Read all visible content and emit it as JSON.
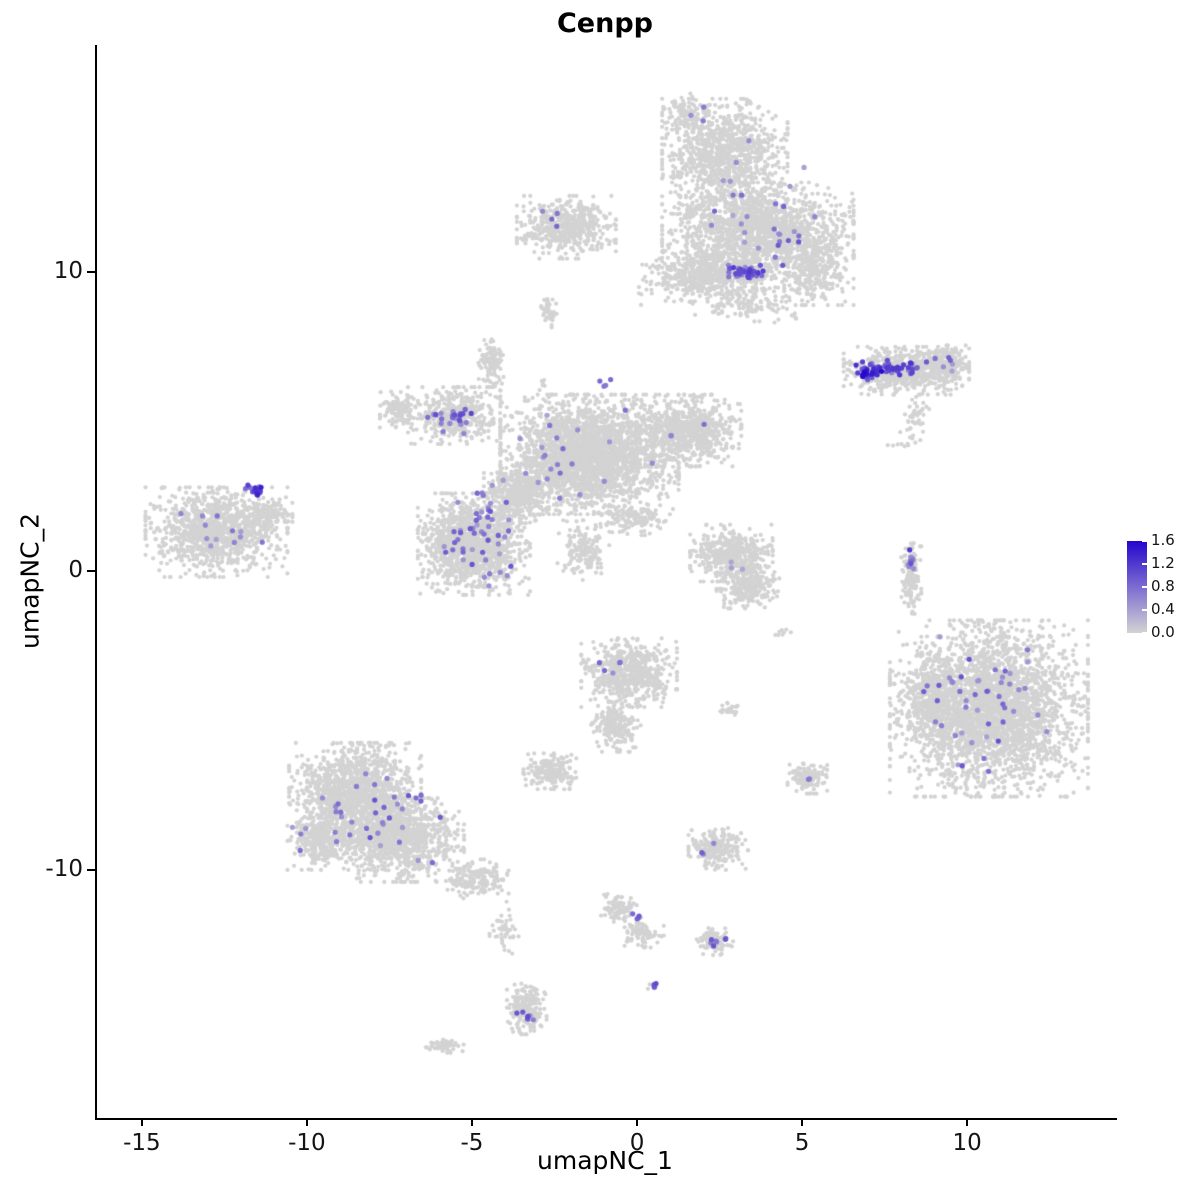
{
  "chart_data": {
    "type": "scatter",
    "title": "Cenpp",
    "xlabel": "umapNC_1",
    "ylabel": "umapNC_2",
    "xlim": [
      -16.42,
      14.48
    ],
    "ylim": [
      -18.3,
      17.6
    ],
    "xticks": [
      -15,
      -10,
      -5,
      0,
      5,
      10
    ],
    "yticks": [
      -10,
      0,
      10
    ],
    "grid": false,
    "background": "#FFFFFF",
    "point_color_low": "#D3D3D3",
    "point_color_high": "#2406CD",
    "legend": {
      "position": "right",
      "min": 0.0,
      "max": 1.6,
      "ticks": [
        1.6,
        1.2,
        0.8,
        0.4,
        0.0
      ]
    },
    "clusters_format": "[center_x, center_y, radius_x, radius_y, n_points] — gray (zero-expression) cell blobs read from the UMAP",
    "clusters": [
      [
        2.6,
        13.9,
        1.9,
        1.9,
        1000
      ],
      [
        1.5,
        15.3,
        0.8,
        0.7,
        120
      ],
      [
        3.6,
        11.4,
        2.9,
        1.6,
        1500
      ],
      [
        2.2,
        9.9,
        2.2,
        1.0,
        650
      ],
      [
        5.3,
        10.2,
        1.2,
        1.3,
        350
      ],
      [
        3.3,
        8.9,
        1.6,
        0.6,
        110
      ],
      [
        -2.2,
        11.5,
        1.5,
        1.05,
        520
      ],
      [
        -2.75,
        8.7,
        0.3,
        0.55,
        40
      ],
      [
        8.1,
        6.7,
        1.9,
        0.8,
        620
      ],
      [
        9.3,
        6.95,
        0.7,
        0.6,
        170
      ],
      [
        8.35,
        5.1,
        0.5,
        0.8,
        45
      ],
      [
        8.0,
        4.2,
        0.5,
        0.35,
        10
      ],
      [
        4.7,
        8.5,
        0.2,
        0.2,
        5
      ],
      [
        -1.5,
        3.9,
        2.7,
        2.0,
        2600
      ],
      [
        1.5,
        4.7,
        1.6,
        1.2,
        700
      ],
      [
        -5.6,
        5.2,
        1.4,
        0.95,
        450
      ],
      [
        -7.3,
        5.4,
        0.55,
        0.6,
        110
      ],
      [
        -4.5,
        7.0,
        0.4,
        0.85,
        110
      ],
      [
        -2.9,
        6.3,
        0.2,
        0.3,
        6
      ],
      [
        -5.0,
        0.9,
        1.7,
        1.7,
        1300
      ],
      [
        -3.7,
        2.6,
        1.0,
        1.0,
        400
      ],
      [
        -1.7,
        0.7,
        0.8,
        1.0,
        150
      ],
      [
        -0.2,
        1.7,
        1.1,
        0.5,
        130
      ],
      [
        -12.8,
        1.3,
        2.15,
        1.5,
        1050
      ],
      [
        -11.3,
        1.9,
        0.8,
        0.5,
        130
      ],
      [
        2.8,
        0.6,
        1.25,
        0.95,
        420
      ],
      [
        3.3,
        -0.5,
        0.95,
        0.75,
        280
      ],
      [
        8.25,
        -0.2,
        0.3,
        1.3,
        140
      ],
      [
        10.6,
        -4.6,
        3.0,
        2.95,
        3000
      ],
      [
        8.9,
        -4.1,
        0.75,
        1.3,
        230
      ],
      [
        -0.3,
        -3.4,
        1.45,
        1.15,
        600
      ],
      [
        -0.7,
        -5.2,
        0.75,
        0.85,
        210
      ],
      [
        -2.7,
        -6.7,
        0.8,
        0.6,
        210
      ],
      [
        -8.6,
        -7.4,
        2.0,
        1.65,
        1300
      ],
      [
        -7.3,
        -9.0,
        2.0,
        1.4,
        1050
      ],
      [
        -9.7,
        -9.0,
        0.95,
        1.0,
        330
      ],
      [
        -4.9,
        -10.3,
        0.95,
        0.65,
        170
      ],
      [
        -4.1,
        -11.9,
        0.45,
        0.9,
        45
      ],
      [
        5.1,
        -6.9,
        0.6,
        0.55,
        125
      ],
      [
        2.4,
        -9.3,
        0.9,
        0.7,
        210
      ],
      [
        2.7,
        -4.6,
        0.45,
        0.3,
        22
      ],
      [
        4.3,
        -2.0,
        0.3,
        0.25,
        8
      ],
      [
        -0.6,
        -11.3,
        0.55,
        0.5,
        85
      ],
      [
        0.1,
        -12.1,
        0.65,
        0.5,
        85
      ],
      [
        2.3,
        -12.4,
        0.55,
        0.45,
        95
      ],
      [
        -3.4,
        -14.6,
        0.6,
        0.9,
        210
      ],
      [
        0.45,
        -13.9,
        0.18,
        0.18,
        6
      ],
      [
        -5.9,
        -15.9,
        0.65,
        0.22,
        55
      ]
    ],
    "expression_points_format": "[center_x, center_y, radius_x, radius_y, n_points, value_min, value_max] — Cenpp-expressing cells (purple/blue)",
    "expression_points": [
      [
        3.2,
        9.95,
        0.6,
        0.28,
        40,
        0.5,
        1.2
      ],
      [
        4.3,
        11.2,
        1.1,
        1.0,
        16,
        0.4,
        1.0
      ],
      [
        3.0,
        12.8,
        2.0,
        1.6,
        14,
        0.35,
        0.9
      ],
      [
        1.8,
        15.2,
        0.4,
        0.4,
        3,
        0.4,
        0.8
      ],
      [
        -2.5,
        11.8,
        0.6,
        0.35,
        4,
        0.45,
        0.9
      ],
      [
        6.95,
        6.7,
        0.4,
        0.3,
        28,
        0.9,
        1.6
      ],
      [
        7.9,
        6.8,
        0.85,
        0.25,
        40,
        0.6,
        1.3
      ],
      [
        9.4,
        6.9,
        0.5,
        0.4,
        6,
        0.4,
        0.9
      ],
      [
        -5.55,
        5.1,
        0.85,
        0.5,
        26,
        0.5,
        1.1
      ],
      [
        -5.0,
        0.9,
        1.4,
        1.4,
        42,
        0.4,
        1.0
      ],
      [
        -4.5,
        2.4,
        0.8,
        0.8,
        10,
        0.4,
        0.9
      ],
      [
        -2.0,
        3.9,
        2.4,
        1.7,
        22,
        0.35,
        0.85
      ],
      [
        -1.1,
        6.3,
        0.35,
        0.45,
        4,
        0.5,
        0.9
      ],
      [
        1.6,
        4.5,
        0.8,
        0.6,
        3,
        0.4,
        0.8
      ],
      [
        -11.6,
        2.6,
        0.32,
        0.35,
        16,
        0.7,
        1.5
      ],
      [
        -12.8,
        1.2,
        1.8,
        1.1,
        12,
        0.35,
        0.85
      ],
      [
        8.2,
        0.3,
        0.18,
        0.5,
        9,
        0.5,
        1.2
      ],
      [
        10.4,
        -4.5,
        2.3,
        2.3,
        48,
        0.4,
        1.0
      ],
      [
        -0.6,
        -3.3,
        0.6,
        0.5,
        5,
        0.45,
        0.95
      ],
      [
        -8.2,
        -8.2,
        2.3,
        1.7,
        40,
        0.4,
        1.0
      ],
      [
        5.1,
        -6.9,
        0.2,
        0.2,
        2,
        0.4,
        0.7
      ],
      [
        2.05,
        -9.3,
        0.25,
        0.2,
        3,
        0.5,
        0.9
      ],
      [
        -0.1,
        -11.6,
        0.18,
        0.18,
        4,
        0.5,
        1.0
      ],
      [
        2.35,
        -12.4,
        0.28,
        0.2,
        7,
        0.5,
        1.1
      ],
      [
        -3.4,
        -14.9,
        0.3,
        0.25,
        7,
        0.5,
        1.1
      ],
      [
        0.45,
        -13.9,
        0.1,
        0.1,
        3,
        0.8,
        1.3
      ],
      [
        3.0,
        0.3,
        0.8,
        0.6,
        3,
        0.35,
        0.7
      ]
    ]
  }
}
